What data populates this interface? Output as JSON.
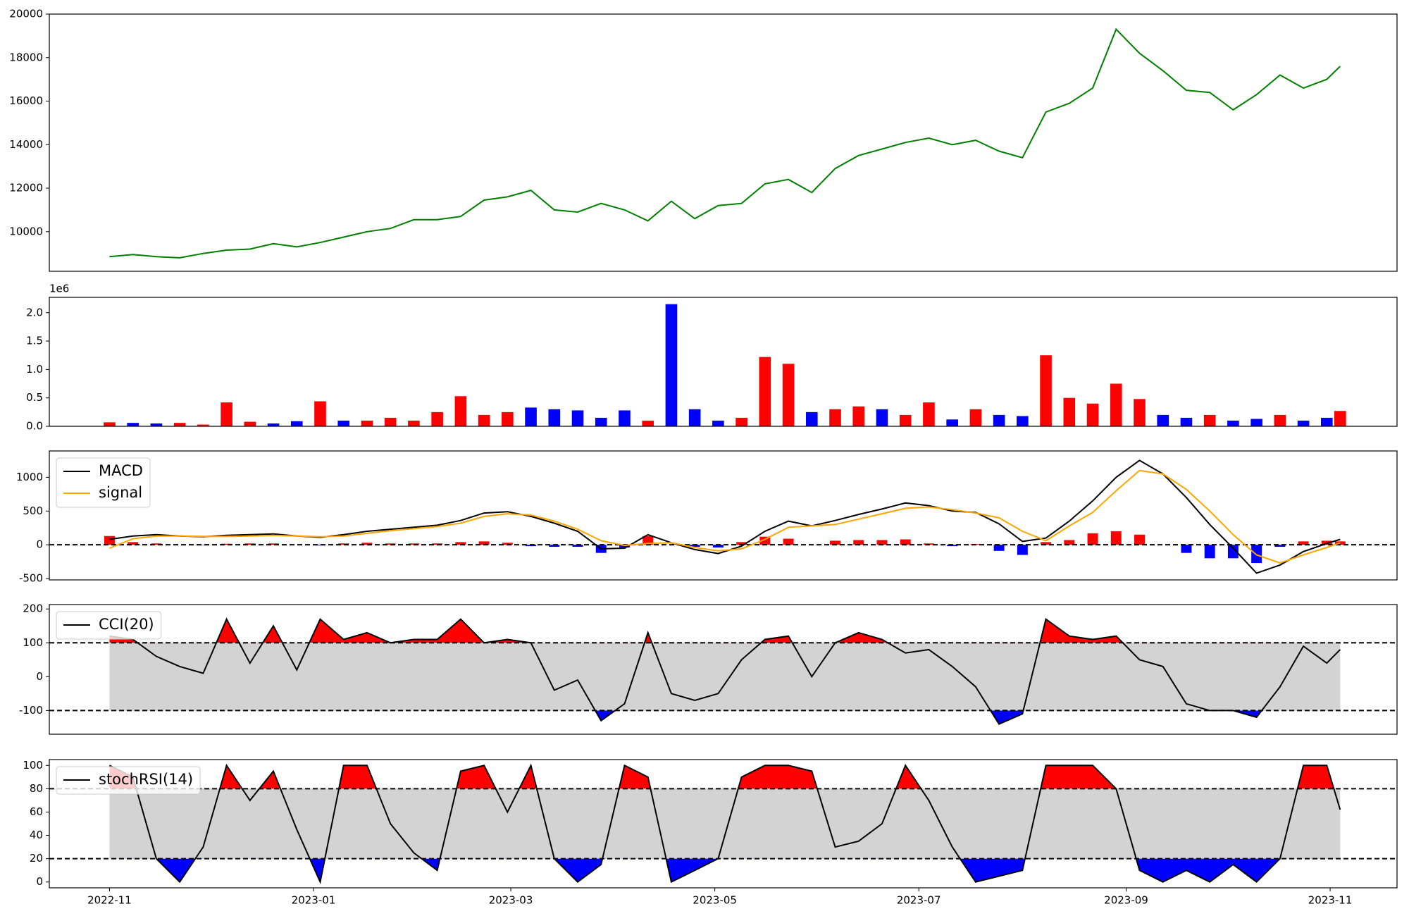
{
  "chart_data": [
    {
      "type": "line",
      "color": "green",
      "x": [
        0,
        7,
        14,
        21,
        28,
        35,
        42,
        49,
        56,
        63,
        70,
        77,
        84,
        91,
        98,
        105,
        112,
        119,
        126,
        133,
        140,
        147,
        154,
        161,
        168,
        175,
        182,
        189,
        196,
        203,
        210,
        217,
        224,
        231,
        238,
        245,
        252,
        259,
        266,
        273,
        280,
        287,
        294,
        301,
        308,
        315,
        322,
        329,
        336,
        343,
        350,
        357,
        364,
        368
      ],
      "values": [
        8850,
        8950,
        8850,
        8800,
        9000,
        9150,
        9200,
        9450,
        9300,
        9500,
        9750,
        10000,
        10150,
        10550,
        10550,
        10700,
        11450,
        11600,
        11900,
        11000,
        10900,
        11300,
        11000,
        10500,
        11400,
        10600,
        11200,
        11300,
        12200,
        12400,
        11800,
        12900,
        13500,
        13800,
        14100,
        14300,
        14000,
        14200,
        13700,
        13400,
        15500,
        15900,
        16600,
        19300,
        18200,
        17400,
        16500,
        16400,
        15600,
        16300,
        17200,
        16600,
        17000,
        17600
      ],
      "ylim": [
        8180,
        20000
      ],
      "yticks": [
        10000,
        12000,
        14000,
        16000,
        18000,
        20000
      ]
    },
    {
      "type": "bar",
      "offset_label": "1e6",
      "x": [
        0,
        7,
        14,
        21,
        28,
        35,
        42,
        49,
        56,
        63,
        70,
        77,
        84,
        91,
        98,
        105,
        112,
        119,
        126,
        133,
        140,
        147,
        154,
        161,
        168,
        175,
        182,
        189,
        196,
        203,
        210,
        217,
        224,
        231,
        238,
        245,
        252,
        259,
        266,
        273,
        280,
        287,
        294,
        301,
        308,
        315,
        322,
        329,
        336,
        343,
        350,
        357,
        364,
        368
      ],
      "values": [
        70000,
        60000,
        50000,
        60000,
        30000,
        420000,
        80000,
        50000,
        90000,
        440000,
        100000,
        100000,
        150000,
        100000,
        250000,
        530000,
        200000,
        250000,
        330000,
        300000,
        280000,
        150000,
        280000,
        100000,
        2150000,
        300000,
        100000,
        150000,
        1220000,
        1100000,
        250000,
        300000,
        350000,
        300000,
        200000,
        420000,
        120000,
        300000,
        200000,
        180000,
        1250000,
        500000,
        400000,
        750000,
        480000,
        200000,
        150000,
        200000,
        100000,
        130000,
        200000,
        100000,
        150000,
        270000
      ],
      "colors": [
        "red",
        "blue",
        "blue",
        "red",
        "red",
        "red",
        "red",
        "blue",
        "blue",
        "red",
        "blue",
        "red",
        "red",
        "red",
        "red",
        "red",
        "red",
        "red",
        "blue",
        "blue",
        "blue",
        "blue",
        "blue",
        "red",
        "blue",
        "blue",
        "blue",
        "red",
        "red",
        "red",
        "blue",
        "red",
        "red",
        "blue",
        "red",
        "red",
        "blue",
        "red",
        "blue",
        "blue",
        "red",
        "red",
        "red",
        "red",
        "red",
        "blue",
        "blue",
        "red",
        "blue",
        "blue",
        "red",
        "blue",
        "blue",
        "red"
      ],
      "ylim": [
        0,
        2270000
      ],
      "yticks": [
        {
          "value": 0,
          "label": "0.0"
        },
        {
          "value": 500000,
          "label": "0.5"
        },
        {
          "value": 1000000,
          "label": "1.0"
        },
        {
          "value": 1500000,
          "label": "1.5"
        },
        {
          "value": 2000000,
          "label": "2.0"
        }
      ]
    },
    {
      "type": "macd",
      "legend": "upper left",
      "hline": 0,
      "x": [
        0,
        7,
        14,
        21,
        28,
        35,
        42,
        49,
        56,
        63,
        70,
        77,
        84,
        91,
        98,
        105,
        112,
        119,
        126,
        133,
        140,
        147,
        154,
        161,
        168,
        175,
        182,
        189,
        196,
        203,
        210,
        217,
        224,
        231,
        238,
        245,
        252,
        259,
        266,
        273,
        280,
        287,
        294,
        301,
        308,
        315,
        322,
        329,
        336,
        343,
        350,
        357,
        364,
        368
      ],
      "series": [
        {
          "name": "MACD",
          "color": "black",
          "values": [
            80,
            130,
            150,
            130,
            120,
            140,
            150,
            160,
            130,
            110,
            150,
            200,
            230,
            260,
            290,
            360,
            470,
            490,
            420,
            320,
            200,
            -60,
            -50,
            150,
            30,
            -70,
            -130,
            -20,
            200,
            350,
            280,
            360,
            450,
            530,
            620,
            580,
            500,
            480,
            310,
            50,
            100,
            350,
            650,
            1000,
            1250,
            1050,
            700,
            300,
            -50,
            -420,
            -300,
            -100,
            20,
            80
          ]
        },
        {
          "name": "signal",
          "color": "orange",
          "values": [
            -50,
            90,
            130,
            130,
            125,
            125,
            130,
            140,
            130,
            120,
            130,
            170,
            210,
            240,
            270,
            320,
            420,
            460,
            440,
            350,
            230,
            60,
            -10,
            20,
            30,
            -40,
            -90,
            -60,
            80,
            260,
            280,
            300,
            380,
            460,
            540,
            560,
            520,
            470,
            400,
            200,
            60,
            280,
            480,
            800,
            1100,
            1050,
            820,
            500,
            150,
            -150,
            -270,
            -150,
            -40,
            30
          ]
        }
      ],
      "histogram": {
        "pos_color": "red",
        "neg_color": "blue",
        "values": [
          130,
          40,
          20,
          0,
          -5,
          15,
          20,
          20,
          0,
          -10,
          20,
          30,
          20,
          20,
          20,
          40,
          50,
          30,
          -20,
          -30,
          -30,
          -120,
          -40,
          130,
          0,
          -30,
          -40,
          40,
          120,
          90,
          0,
          60,
          70,
          70,
          80,
          20,
          -20,
          10,
          -90,
          -150,
          40,
          70,
          170,
          200,
          150,
          0,
          -120,
          -200,
          -200,
          -270,
          -30,
          50,
          60,
          50
        ]
      },
      "ylim": [
        -520,
        1390
      ],
      "yticks": [
        -500,
        0,
        500,
        1000
      ]
    },
    {
      "type": "oscillator",
      "legend": "upper left",
      "bands": [
        -100,
        100
      ],
      "band_fill": "lightgray",
      "upper_fill": "red",
      "lower_fill": "blue",
      "x": [
        0,
        7,
        14,
        21,
        28,
        35,
        42,
        49,
        56,
        63,
        70,
        77,
        84,
        91,
        98,
        105,
        112,
        119,
        126,
        133,
        140,
        147,
        154,
        161,
        168,
        175,
        182,
        189,
        196,
        203,
        210,
        217,
        224,
        231,
        238,
        245,
        252,
        259,
        266,
        273,
        280,
        287,
        294,
        301,
        308,
        315,
        322,
        329,
        336,
        343,
        350,
        357,
        364,
        368
      ],
      "series": [
        {
          "name": "CCI(20)",
          "color": "black",
          "values": [
            120,
            110,
            60,
            30,
            10,
            170,
            40,
            150,
            20,
            170,
            110,
            130,
            100,
            110,
            110,
            170,
            100,
            110,
            100,
            -40,
            -10,
            -130,
            -80,
            130,
            -50,
            -70,
            -50,
            50,
            110,
            120,
            0,
            100,
            130,
            110,
            70,
            80,
            30,
            -30,
            -140,
            -110,
            170,
            120,
            110,
            120,
            50,
            30,
            -80,
            -100,
            -100,
            -120,
            -30,
            90,
            40,
            80
          ]
        }
      ],
      "ylim": [
        -170,
        213
      ],
      "yticks": [
        -100,
        0,
        100,
        200
      ]
    },
    {
      "type": "oscillator",
      "legend": "upper left",
      "bands": [
        20,
        80
      ],
      "band_fill": "lightgray",
      "upper_fill": "red",
      "lower_fill": "blue",
      "x": [
        0,
        7,
        14,
        21,
        28,
        35,
        42,
        49,
        56,
        63,
        70,
        77,
        84,
        91,
        98,
        105,
        112,
        119,
        126,
        133,
        140,
        147,
        154,
        161,
        168,
        175,
        182,
        189,
        196,
        203,
        210,
        217,
        224,
        231,
        238,
        245,
        252,
        259,
        266,
        273,
        280,
        287,
        294,
        301,
        308,
        315,
        322,
        329,
        336,
        343,
        350,
        357,
        364,
        368
      ],
      "series": [
        {
          "name": "stochRSI(14)",
          "color": "black",
          "values": [
            100,
            90,
            20,
            0,
            30,
            100,
            70,
            95,
            45,
            0,
            100,
            100,
            50,
            25,
            10,
            95,
            100,
            60,
            100,
            20,
            0,
            15,
            100,
            90,
            0,
            10,
            20,
            90,
            100,
            100,
            95,
            30,
            35,
            50,
            100,
            70,
            30,
            0,
            5,
            10,
            100,
            100,
            100,
            80,
            10,
            0,
            10,
            0,
            15,
            0,
            20,
            100,
            100,
            62
          ]
        }
      ],
      "ylim": [
        -5,
        105
      ],
      "yticks": [
        0,
        20,
        40,
        60,
        80,
        100
      ],
      "xlim": [
        -18,
        385
      ],
      "xticks": [
        {
          "value": 0,
          "label": "2022-11"
        },
        {
          "value": 61,
          "label": "2023-01"
        },
        {
          "value": 120,
          "label": "2023-03"
        },
        {
          "value": 181,
          "label": "2023-05"
        },
        {
          "value": 242,
          "label": "2023-07"
        },
        {
          "value": 304,
          "label": "2023-09"
        },
        {
          "value": 365,
          "label": "2023-11"
        }
      ]
    }
  ]
}
